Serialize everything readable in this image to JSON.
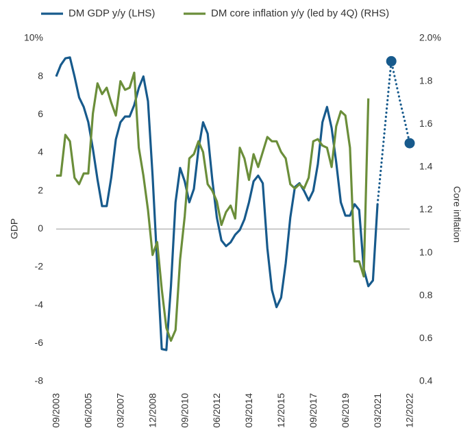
{
  "chart_data": {
    "type": "line",
    "categories": [
      "09/2003",
      null,
      null,
      null,
      null,
      null,
      null,
      "06/2005",
      null,
      null,
      null,
      null,
      null,
      null,
      "03/2007",
      null,
      null,
      null,
      null,
      null,
      null,
      "12/2008",
      null,
      null,
      null,
      null,
      null,
      null,
      "09/2010",
      null,
      null,
      null,
      null,
      null,
      null,
      "06/2012",
      null,
      null,
      null,
      null,
      null,
      null,
      "03/2014",
      null,
      null,
      null,
      null,
      null,
      null,
      "12/2015",
      null,
      null,
      null,
      null,
      null,
      null,
      "09/2017",
      null,
      null,
      null,
      null,
      null,
      null,
      "06/2019",
      null,
      null,
      null,
      null,
      null,
      null,
      "03/2021",
      null,
      null,
      null,
      null,
      null,
      null,
      "12/2022"
    ],
    "series": [
      {
        "name": "DM GDP y/y (LHS)",
        "color": "#175a8c",
        "dashed_from": 70,
        "markers": [
          73,
          77
        ],
        "values": [
          8.0,
          8.6,
          8.95,
          9.0,
          8.0,
          6.9,
          6.4,
          5.6,
          4.2,
          2.6,
          1.2,
          1.2,
          2.7,
          4.7,
          5.6,
          5.9,
          5.9,
          6.5,
          7.4,
          8.0,
          6.7,
          2.8,
          -1.8,
          -6.3,
          -6.35,
          -3.0,
          1.4,
          3.2,
          2.5,
          1.4,
          2.1,
          4.2,
          5.6,
          5.0,
          2.6,
          0.6,
          -0.6,
          -0.9,
          -0.7,
          -0.3,
          -0.05,
          0.5,
          1.4,
          2.5,
          2.8,
          2.4,
          -1.0,
          -3.2,
          -4.1,
          -3.6,
          -1.8,
          0.6,
          2.2,
          2.4,
          2.0,
          1.5,
          2.0,
          3.4,
          5.6,
          6.4,
          5.3,
          3.5,
          1.4,
          0.7,
          0.7,
          1.3,
          1.0,
          -2.1,
          -3.0,
          -2.7,
          1.3,
          3.8,
          6.3,
          8.8,
          7.7,
          6.6,
          5.6,
          4.5
        ]
      },
      {
        "name": "DM core inflation y/y (led by 4Q) (RHS)",
        "color": "#6b8e3a",
        "axis": "y2",
        "values": [
          1.36,
          1.36,
          1.55,
          1.52,
          1.35,
          1.32,
          1.37,
          1.37,
          1.65,
          1.79,
          1.74,
          1.77,
          1.7,
          1.64,
          1.8,
          1.76,
          1.77,
          1.84,
          1.49,
          1.36,
          1.2,
          0.99,
          1.05,
          0.83,
          0.65,
          0.59,
          0.64,
          0.97,
          1.17,
          1.44,
          1.46,
          1.52,
          1.47,
          1.32,
          1.29,
          1.24,
          1.13,
          1.19,
          1.22,
          1.16,
          1.49,
          1.44,
          1.34,
          1.46,
          1.4,
          1.47,
          1.54,
          1.52,
          1.52,
          1.47,
          1.44,
          1.32,
          1.3,
          1.32,
          1.3,
          1.35,
          1.52,
          1.53,
          1.5,
          1.49,
          1.4,
          1.59,
          1.66,
          1.64,
          1.49,
          0.96,
          0.96,
          0.89,
          1.72,
          null,
          null,
          null,
          null,
          null,
          null,
          null,
          null,
          null
        ]
      }
    ],
    "ylabel": "GDP",
    "y2label": "Core inflation",
    "ylim": [
      -8,
      10
    ],
    "yticks": [
      -8,
      -6,
      -4,
      -2,
      0,
      2,
      4,
      6,
      8,
      {
        "value": 10,
        "label": "10%"
      }
    ],
    "y2lim": [
      0.4,
      2.0
    ],
    "y2ticks": [
      0.4,
      0.6,
      0.8,
      {
        "value": 1.0,
        "label": "1.0"
      },
      1.2,
      1.4,
      1.6,
      1.8,
      {
        "value": 2.0,
        "label": "2.0%"
      }
    ],
    "zero_line": true
  }
}
